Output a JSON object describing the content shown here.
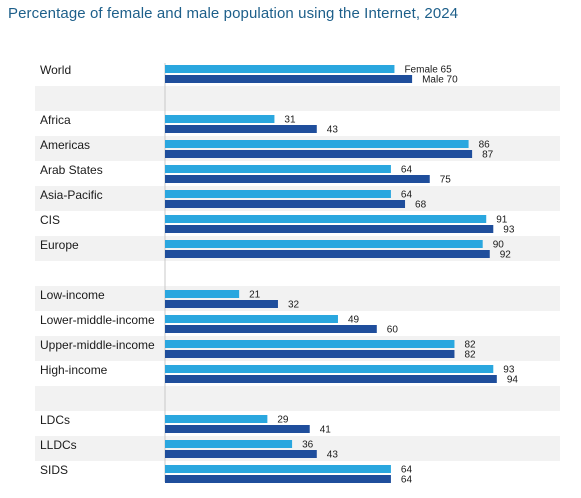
{
  "colors": {
    "female": "#2aa7df",
    "male": "#1f4e9c",
    "band": "#f2f2f2"
  },
  "chart_data": {
    "type": "bar",
    "orientation": "horizontal",
    "title": "Percentage of female and male population using the Internet, 2024",
    "xlim": [
      0,
      100
    ],
    "grid": false,
    "legend": "none",
    "series": [
      {
        "name": "Female",
        "color": "#2aa7df"
      },
      {
        "name": "Male",
        "color": "#1f4e9c"
      }
    ],
    "groups": [
      {
        "label": "World",
        "female": 65,
        "male": 70,
        "female_label": "Female  65",
        "male_label": "Male  70"
      },
      {
        "label": "Africa",
        "female": 31,
        "male": 43,
        "female_label": "31",
        "male_label": "43"
      },
      {
        "label": "Americas",
        "female": 86,
        "male": 87,
        "female_label": "86",
        "male_label": "87"
      },
      {
        "label": "Arab States",
        "female": 64,
        "male": 75,
        "female_label": "64",
        "male_label": "75"
      },
      {
        "label": "Asia-Pacific",
        "female": 64,
        "male": 68,
        "female_label": "64",
        "male_label": "68"
      },
      {
        "label": "CIS",
        "female": 91,
        "male": 93,
        "female_label": "91",
        "male_label": "93"
      },
      {
        "label": "Europe",
        "female": 90,
        "male": 92,
        "female_label": "90",
        "male_label": "92"
      },
      {
        "label": "Low-income",
        "female": 21,
        "male": 32,
        "female_label": "21",
        "male_label": "32"
      },
      {
        "label": "Lower-middle-income",
        "female": 49,
        "male": 60,
        "female_label": "49",
        "male_label": "60"
      },
      {
        "label": "Upper-middle-income",
        "female": 82,
        "male": 82,
        "female_label": "82",
        "male_label": "82"
      },
      {
        "label": "High-income",
        "female": 93,
        "male": 94,
        "female_label": "93",
        "male_label": "94"
      },
      {
        "label": "LDCs",
        "female": 29,
        "male": 41,
        "female_label": "29",
        "male_label": "41"
      },
      {
        "label": "LLDCs",
        "female": 36,
        "male": 43,
        "female_label": "36",
        "male_label": "43"
      },
      {
        "label": "SIDS",
        "female": 64,
        "male": 64,
        "female_label": "64",
        "male_label": "64"
      }
    ]
  }
}
